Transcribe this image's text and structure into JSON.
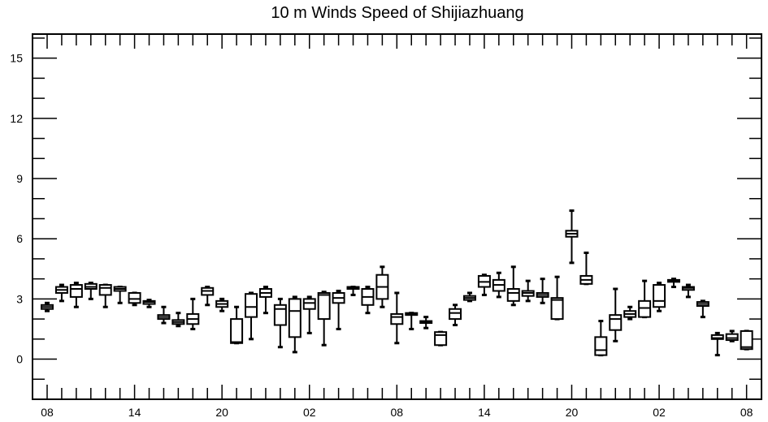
{
  "chart_data": {
    "type": "box",
    "title": "10 m Winds Speed of Shijiazhuang",
    "xlabel": "",
    "ylabel": "",
    "ylim": [
      -2,
      16.2
    ],
    "yticks": [
      0,
      3,
      6,
      9,
      12,
      15
    ],
    "x_tick_labels": [
      "08",
      "14",
      "20",
      "02",
      "08",
      "14",
      "20",
      "02",
      "08"
    ],
    "x_tick_positions": [
      0,
      6,
      12,
      18,
      24,
      30,
      36,
      42,
      48
    ],
    "grid": false,
    "boxes": [
      {
        "x": 0,
        "q1": 2.5,
        "median": 2.6,
        "q3": 2.7,
        "whisker_low": 2.4,
        "whisker_high": 2.8
      },
      {
        "x": 1,
        "q1": 3.3,
        "median": 3.45,
        "q3": 3.6,
        "whisker_low": 2.9,
        "whisker_high": 3.7
      },
      {
        "x": 2,
        "q1": 3.1,
        "median": 3.5,
        "q3": 3.7,
        "whisker_low": 2.6,
        "whisker_high": 3.8
      },
      {
        "x": 3,
        "q1": 3.5,
        "median": 3.6,
        "q3": 3.75,
        "whisker_low": 3.0,
        "whisker_high": 3.8
      },
      {
        "x": 4,
        "q1": 3.2,
        "median": 3.55,
        "q3": 3.7,
        "whisker_low": 2.6,
        "whisker_high": 3.7
      },
      {
        "x": 5,
        "q1": 3.4,
        "median": 3.5,
        "q3": 3.6,
        "whisker_low": 2.8,
        "whisker_high": 3.6
      },
      {
        "x": 6,
        "q1": 2.8,
        "median": 3.0,
        "q3": 3.3,
        "whisker_low": 2.7,
        "whisker_high": 3.3
      },
      {
        "x": 7,
        "q1": 2.75,
        "median": 2.85,
        "q3": 2.9,
        "whisker_low": 2.6,
        "whisker_high": 2.95
      },
      {
        "x": 8,
        "q1": 2.0,
        "median": 2.1,
        "q3": 2.2,
        "whisker_low": 1.8,
        "whisker_high": 2.6
      },
      {
        "x": 9,
        "q1": 1.75,
        "median": 1.85,
        "q3": 1.95,
        "whisker_low": 1.65,
        "whisker_high": 2.3
      },
      {
        "x": 10,
        "q1": 1.75,
        "median": 2.0,
        "q3": 2.25,
        "whisker_low": 1.5,
        "whisker_high": 3.0
      },
      {
        "x": 11,
        "q1": 3.2,
        "median": 3.4,
        "q3": 3.55,
        "whisker_low": 2.7,
        "whisker_high": 3.6
      },
      {
        "x": 12,
        "q1": 2.6,
        "median": 2.75,
        "q3": 2.9,
        "whisker_low": 2.4,
        "whisker_high": 3.0
      },
      {
        "x": 13,
        "q1": 0.8,
        "median": 0.85,
        "q3": 2.0,
        "whisker_low": 0.8,
        "whisker_high": 2.6
      },
      {
        "x": 14,
        "q1": 2.1,
        "median": 2.6,
        "q3": 3.25,
        "whisker_low": 1.0,
        "whisker_high": 3.3
      },
      {
        "x": 15,
        "q1": 3.1,
        "median": 3.3,
        "q3": 3.5,
        "whisker_low": 2.3,
        "whisker_high": 3.6
      },
      {
        "x": 16,
        "q1": 1.7,
        "median": 2.5,
        "q3": 2.7,
        "whisker_low": 0.6,
        "whisker_high": 3.0
      },
      {
        "x": 17,
        "q1": 1.1,
        "median": 2.4,
        "q3": 3.0,
        "whisker_low": 0.35,
        "whisker_high": 3.1
      },
      {
        "x": 18,
        "q1": 2.5,
        "median": 2.8,
        "q3": 3.0,
        "whisker_low": 1.3,
        "whisker_high": 3.1
      },
      {
        "x": 19,
        "q1": 2.0,
        "median": 3.2,
        "q3": 3.3,
        "whisker_low": 0.7,
        "whisker_high": 3.35
      },
      {
        "x": 20,
        "q1": 2.8,
        "median": 3.05,
        "q3": 3.3,
        "whisker_low": 1.5,
        "whisker_high": 3.4
      },
      {
        "x": 21,
        "q1": 3.5,
        "median": 3.55,
        "q3": 3.6,
        "whisker_low": 3.2,
        "whisker_high": 3.6
      },
      {
        "x": 22,
        "q1": 2.7,
        "median": 3.1,
        "q3": 3.5,
        "whisker_low": 2.3,
        "whisker_high": 3.6
      },
      {
        "x": 23,
        "q1": 3.0,
        "median": 3.6,
        "q3": 4.2,
        "whisker_low": 2.6,
        "whisker_high": 4.6
      },
      {
        "x": 24,
        "q1": 1.75,
        "median": 2.1,
        "q3": 2.25,
        "whisker_low": 0.8,
        "whisker_high": 3.3
      },
      {
        "x": 25,
        "q1": 2.2,
        "median": 2.25,
        "q3": 2.3,
        "whisker_low": 1.5,
        "whisker_high": 2.3
      },
      {
        "x": 26,
        "q1": 1.8,
        "median": 1.85,
        "q3": 1.9,
        "whisker_low": 1.55,
        "whisker_high": 2.1
      },
      {
        "x": 27,
        "q1": 0.7,
        "median": 1.2,
        "q3": 1.35,
        "whisker_low": 0.7,
        "whisker_high": 1.35
      },
      {
        "x": 28,
        "q1": 2.0,
        "median": 2.3,
        "q3": 2.5,
        "whisker_low": 1.7,
        "whisker_high": 2.7
      },
      {
        "x": 29,
        "q1": 2.95,
        "median": 3.05,
        "q3": 3.15,
        "whisker_low": 2.9,
        "whisker_high": 3.3
      },
      {
        "x": 30,
        "q1": 3.6,
        "median": 3.85,
        "q3": 4.15,
        "whisker_low": 3.2,
        "whisker_high": 4.2
      },
      {
        "x": 31,
        "q1": 3.4,
        "median": 3.7,
        "q3": 3.95,
        "whisker_low": 3.1,
        "whisker_high": 4.3
      },
      {
        "x": 32,
        "q1": 2.9,
        "median": 3.3,
        "q3": 3.5,
        "whisker_low": 2.7,
        "whisker_high": 4.6
      },
      {
        "x": 33,
        "q1": 3.15,
        "median": 3.3,
        "q3": 3.4,
        "whisker_low": 2.9,
        "whisker_high": 3.9
      },
      {
        "x": 34,
        "q1": 3.1,
        "median": 3.2,
        "q3": 3.3,
        "whisker_low": 2.8,
        "whisker_high": 4.0
      },
      {
        "x": 35,
        "q1": 2.0,
        "median": 2.95,
        "q3": 3.05,
        "whisker_low": 2.0,
        "whisker_high": 4.1
      },
      {
        "x": 36,
        "q1": 6.1,
        "median": 6.25,
        "q3": 6.4,
        "whisker_low": 4.8,
        "whisker_high": 7.4
      },
      {
        "x": 37,
        "q1": 3.75,
        "median": 3.95,
        "q3": 4.15,
        "whisker_low": 3.75,
        "whisker_high": 5.3
      },
      {
        "x": 38,
        "q1": 0.2,
        "median": 0.45,
        "q3": 1.1,
        "whisker_low": 0.2,
        "whisker_high": 1.9
      },
      {
        "x": 39,
        "q1": 1.45,
        "median": 2.0,
        "q3": 2.2,
        "whisker_low": 0.9,
        "whisker_high": 3.5
      },
      {
        "x": 40,
        "q1": 2.1,
        "median": 2.25,
        "q3": 2.4,
        "whisker_low": 2.0,
        "whisker_high": 2.6
      },
      {
        "x": 41,
        "q1": 2.1,
        "median": 2.55,
        "q3": 2.9,
        "whisker_low": 2.1,
        "whisker_high": 3.9
      },
      {
        "x": 42,
        "q1": 2.6,
        "median": 2.9,
        "q3": 3.7,
        "whisker_low": 2.4,
        "whisker_high": 3.8
      },
      {
        "x": 43,
        "q1": 3.85,
        "median": 3.9,
        "q3": 3.95,
        "whisker_low": 3.6,
        "whisker_high": 4.0
      },
      {
        "x": 44,
        "q1": 3.45,
        "median": 3.55,
        "q3": 3.6,
        "whisker_low": 3.1,
        "whisker_high": 3.7
      },
      {
        "x": 45,
        "q1": 2.65,
        "median": 2.75,
        "q3": 2.85,
        "whisker_low": 2.1,
        "whisker_high": 2.9
      },
      {
        "x": 46,
        "q1": 1.0,
        "median": 1.05,
        "q3": 1.2,
        "whisker_low": 0.2,
        "whisker_high": 1.3
      },
      {
        "x": 47,
        "q1": 0.95,
        "median": 1.05,
        "q3": 1.25,
        "whisker_low": 0.9,
        "whisker_high": 1.4
      },
      {
        "x": 48,
        "q1": 0.5,
        "median": 0.6,
        "q3": 1.4,
        "whisker_low": 0.5,
        "whisker_high": 1.4
      }
    ]
  }
}
